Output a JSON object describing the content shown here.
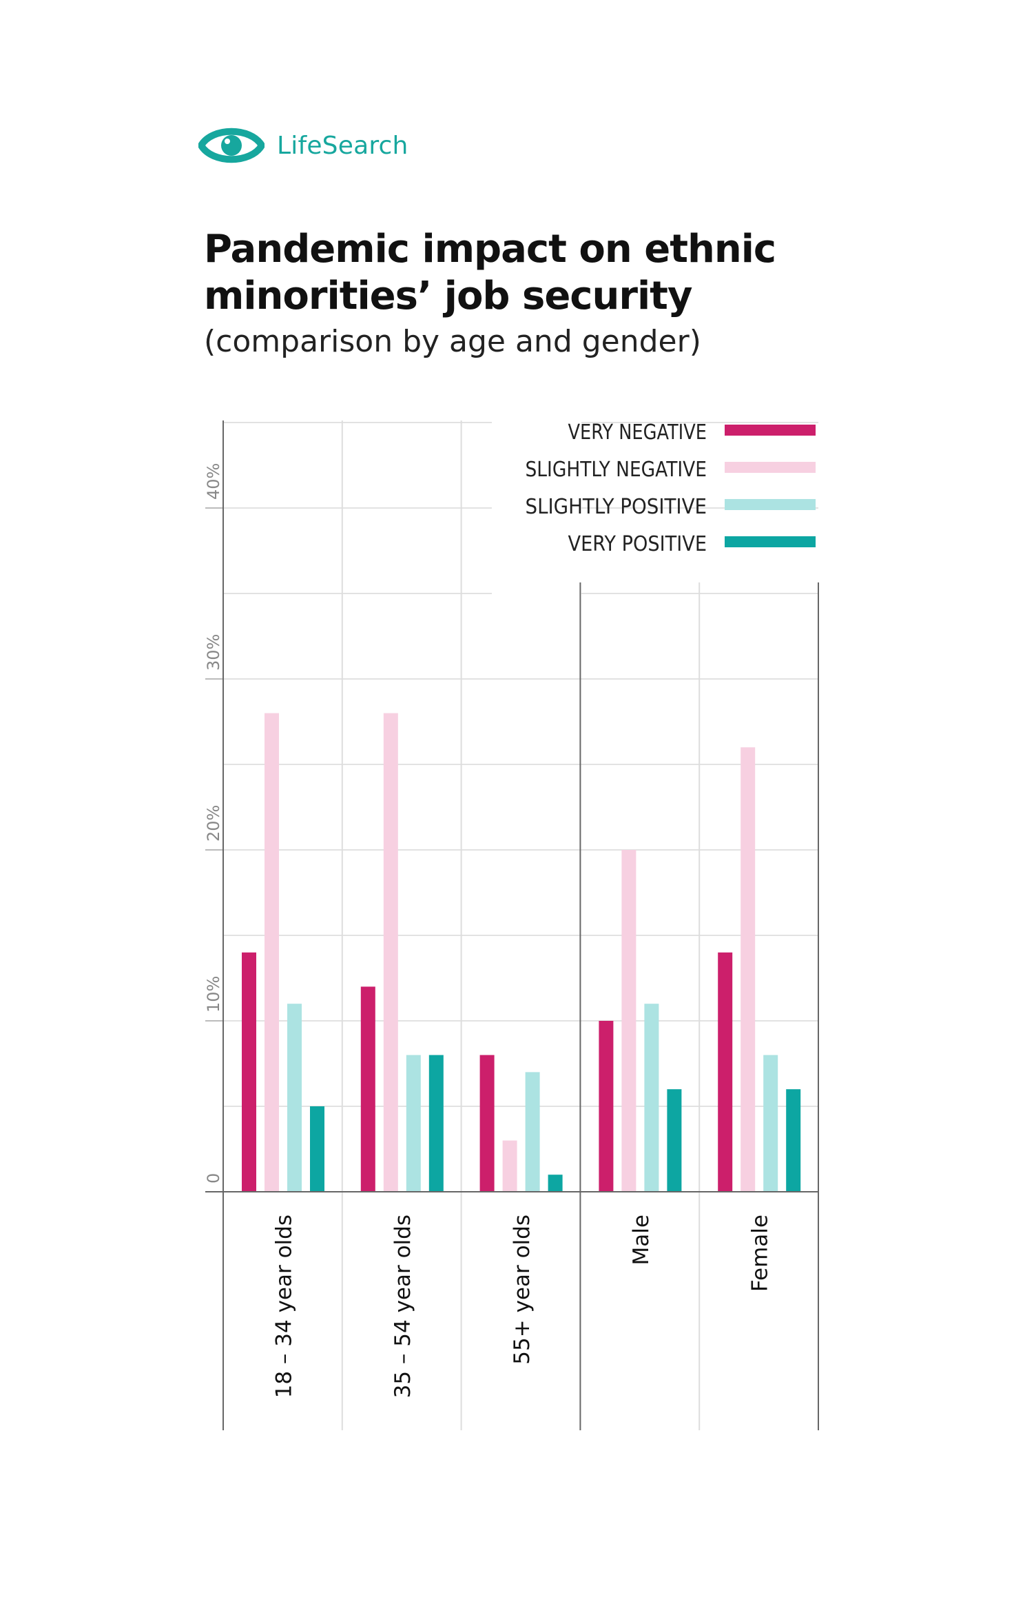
{
  "brand": {
    "name": "LifeSearch",
    "color": "#17a79e"
  },
  "header": {
    "title_line1": "Pandemic impact on ethnic",
    "title_line2": "minorities’ job security",
    "subtitle": "(comparison by age and gender)"
  },
  "chart_data": {
    "type": "bar",
    "title": "Pandemic impact on ethnic minorities’ job security",
    "subtitle": "(comparison by age and gender)",
    "xlabel": "",
    "ylabel": "",
    "ylim": [
      0,
      45
    ],
    "yticks": [
      0,
      10,
      20,
      30,
      40
    ],
    "ytick_labels": [
      "0",
      "10%",
      "20%",
      "30%",
      "40%"
    ],
    "grid": true,
    "legend_position": "top-right",
    "categories": [
      "18 – 34 year olds",
      "35 – 54 year olds",
      "55+ year olds",
      "Male",
      "Female"
    ],
    "series": [
      {
        "name": "VERY NEGATIVE",
        "color": "#cc1f6b",
        "values": [
          14,
          12,
          8,
          10,
          14
        ]
      },
      {
        "name": "SLIGHTLY NEGATIVE",
        "color": "#f7d0e1",
        "values": [
          28,
          28,
          3,
          20,
          26
        ]
      },
      {
        "name": "SLIGHTLY POSITIVE",
        "color": "#ace3e2",
        "values": [
          11,
          8,
          7,
          11,
          8
        ]
      },
      {
        "name": "VERY POSITIVE",
        "color": "#0da6a2",
        "values": [
          5,
          8,
          1,
          6,
          6
        ]
      }
    ]
  }
}
